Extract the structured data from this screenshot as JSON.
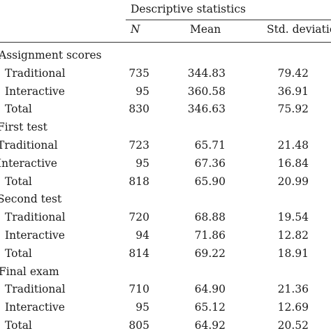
{
  "table": {
    "group_header": "Descriptive statistics",
    "columns": {
      "n": "N",
      "mean": "Mean",
      "sd": "Std. deviation"
    },
    "sections": [
      {
        "title": "Assignment scores",
        "rows": [
          {
            "label": "Traditional",
            "n": "735",
            "mean": "344.83",
            "sd": "79.42"
          },
          {
            "label": "Interactive",
            "n": "95",
            "mean": "360.58",
            "sd": "36.91"
          },
          {
            "label": "Total",
            "n": "830",
            "mean": "346.63",
            "sd": "75.92"
          }
        ]
      },
      {
        "title": "First test",
        "rows": [
          {
            "label": "Traditional",
            "n": "723",
            "mean": "65.71",
            "sd": "21.48"
          },
          {
            "label": "Interactive",
            "n": "95",
            "mean": "67.36",
            "sd": "16.84"
          },
          {
            "label": "Total",
            "n": "818",
            "mean": "65.90",
            "sd": "20.99"
          }
        ]
      },
      {
        "title": "Second test",
        "rows": [
          {
            "label": "Traditional",
            "n": "720",
            "mean": "68.88",
            "sd": "19.54"
          },
          {
            "label": "Interactive",
            "n": "94",
            "mean": "71.86",
            "sd": "12.82"
          },
          {
            "label": "Total",
            "n": "814",
            "mean": "69.22",
            "sd": "18.91"
          }
        ]
      },
      {
        "title": "Final exam",
        "rows": [
          {
            "label": "Traditional",
            "n": "710",
            "mean": "64.90",
            "sd": "21.36"
          },
          {
            "label": "Interactive",
            "n": "95",
            "mean": "65.12",
            "sd": "12.69"
          },
          {
            "label": "Total",
            "n": "805",
            "mean": "64.92",
            "sd": "20.52"
          }
        ]
      }
    ]
  }
}
